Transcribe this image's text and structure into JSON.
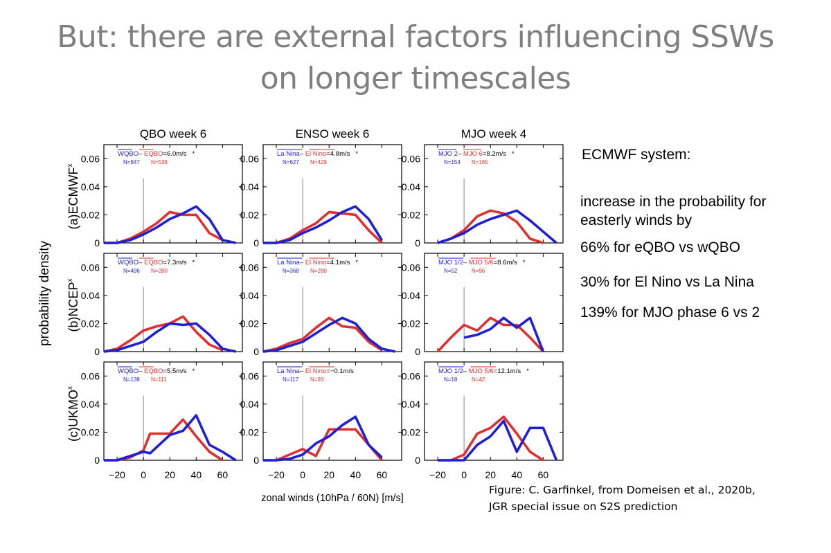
{
  "slide": {
    "title_line1": "But: there are external factors influencing SSWs",
    "title_line2": "on longer timescales",
    "side_heading": "ECMWF system:",
    "side_intro": "increase in the probability for easterly winds by",
    "side_stats": [
      "66% for eQBO vs wQBO",
      "30% for El Nino vs La Nina",
      "139%  for MJO phase 6 vs 2"
    ],
    "caption_line1": "Figure: C. Garfinkel, from Domeisen et al., 2020b,",
    "caption_line2": "JGR special issue on S2S prediction",
    "colors": {
      "title": "#7f7f7f",
      "blue": "#1f1fd6",
      "red": "#e0302e",
      "marker": "#9a9a9a"
    }
  },
  "chart_data": {
    "type": "line",
    "xlabel": "zonal winds (10hPa / 60N) [m/s]",
    "ylabel": "probability density",
    "xlim": [
      -30,
      75
    ],
    "ylim": [
      0,
      0.07
    ],
    "xticks": [
      -20,
      0,
      20,
      40,
      60
    ],
    "yticks": [
      0,
      0.02,
      0.04,
      0.06
    ],
    "ytick_labels": [
      "0",
      "0.02",
      "0.04",
      "0.06"
    ],
    "column_titles": [
      "QBO week 6",
      "ENSO week 6",
      "MJO week 4"
    ],
    "row_labels": [
      "(a)ECMWF",
      "(b)NCEP",
      "(c)UKMO"
    ],
    "row_superscript": "x",
    "zero_marker": {
      "x": 0,
      "y_top": 0.046
    },
    "panels": [
      [
        {
          "blue_label": "WQBO",
          "red_label": "EQBO",
          "diff": "=6.0m/s",
          "star": "*",
          "blue_n": "N=847",
          "red_n": "N=539",
          "x": [
            -30,
            -20,
            -10,
            0,
            10,
            20,
            30,
            40,
            50,
            60,
            70
          ],
          "blue": [
            0,
            0,
            0.002,
            0.006,
            0.011,
            0.017,
            0.021,
            0.026,
            0.017,
            0.002,
            0
          ],
          "red": [
            0,
            0,
            0.003,
            0.008,
            0.014,
            0.022,
            0.02,
            0.02,
            0.007,
            0.002,
            null
          ]
        },
        {
          "blue_label": "La Nina",
          "red_label": "El Nino",
          "diff": "=4.8m/s",
          "star": "*",
          "blue_n": "N=627",
          "red_n": "N=429",
          "x": [
            -30,
            -20,
            -10,
            0,
            10,
            20,
            30,
            40,
            50,
            60,
            70
          ],
          "blue": [
            0,
            0,
            0.002,
            0.007,
            0.011,
            0.016,
            0.022,
            0.026,
            0.017,
            0.002,
            null
          ],
          "red": [
            0,
            0,
            0.003,
            0.009,
            0.014,
            0.022,
            0.021,
            0.02,
            0.009,
            0,
            null
          ]
        },
        {
          "blue_label": "MJO 2",
          "red_label": "MJO 6",
          "diff": "=8.2m/s",
          "star": "*",
          "blue_n": "N=154",
          "red_n": "N=165",
          "x": [
            -30,
            -20,
            -10,
            0,
            10,
            20,
            30,
            40,
            50,
            60,
            70
          ],
          "blue": [
            null,
            0,
            0.003,
            0.007,
            0.013,
            0.017,
            0.02,
            0.023,
            0.016,
            0.008,
            0
          ],
          "red": [
            null,
            0,
            0.003,
            0.009,
            0.019,
            0.023,
            0.021,
            0.015,
            0.003,
            0,
            null
          ]
        }
      ],
      [
        {
          "blue_label": "WQBO",
          "red_label": "EQBO",
          "diff": "=7.3m/s",
          "star": "*",
          "blue_n": "N=496",
          "red_n": "N=280",
          "x": [
            -30,
            -20,
            -10,
            0,
            10,
            20,
            30,
            40,
            50,
            60,
            70
          ],
          "blue": [
            0,
            0.001,
            0.004,
            0.007,
            0.014,
            0.02,
            0.019,
            0.02,
            0.012,
            0.002,
            0
          ],
          "red": [
            0,
            0.002,
            0.008,
            0.015,
            0.018,
            0.02,
            0.025,
            0.014,
            0.005,
            0.001,
            null
          ]
        },
        {
          "blue_label": "La Nina",
          "red_label": "El Nino",
          "diff": "=4.1m/s",
          "star": "*",
          "blue_n": "N=368",
          "red_n": "N=280",
          "x": [
            -30,
            -20,
            -10,
            0,
            10,
            20,
            30,
            40,
            50,
            60,
            70
          ],
          "blue": [
            0,
            0.001,
            0.004,
            0.007,
            0.013,
            0.019,
            0.024,
            0.02,
            0.009,
            0.002,
            0
          ],
          "red": [
            0,
            0.002,
            0.006,
            0.009,
            0.017,
            0.024,
            0.018,
            0.017,
            0.007,
            0.001,
            null
          ]
        },
        {
          "blue_label": "MJO 1/2",
          "red_label": "MJO 5/6",
          "diff": "=8.6m/s",
          "star": "*",
          "blue_n": "N=52",
          "red_n": "N=96",
          "x": [
            -30,
            -20,
            -10,
            0,
            10,
            20,
            30,
            40,
            50,
            60,
            70
          ],
          "blue": [
            null,
            null,
            null,
            0.01,
            0.012,
            0.016,
            0.024,
            0.017,
            0.024,
            0,
            null
          ],
          "red": [
            null,
            0,
            0.01,
            0.019,
            0.015,
            0.024,
            0.019,
            0.019,
            0.01,
            0,
            null
          ]
        }
      ],
      [
        {
          "blue_label": "WQBO",
          "red_label": "EQBO",
          "diff": "=5.5m/s",
          "star": "*",
          "blue_n": "N=138",
          "red_n": "N=111",
          "x": [
            -30,
            -20,
            -10,
            0,
            5,
            20,
            30,
            40,
            50,
            60,
            70
          ],
          "blue": [
            0,
            0,
            0.003,
            0.006,
            0.005,
            0.018,
            0.021,
            0.032,
            0.011,
            0.006,
            0
          ],
          "red": [
            0,
            0,
            0.002,
            0.007,
            0.019,
            0.019,
            0.029,
            0.017,
            0.006,
            0,
            null
          ]
        },
        {
          "blue_label": "La Nina",
          "red_label": "El Nino",
          "diff": "=−0.1m/s",
          "star": "",
          "blue_n": "N=117",
          "red_n": "N=93",
          "x": [
            -30,
            -20,
            -10,
            0,
            10,
            20,
            30,
            40,
            50,
            60,
            70
          ],
          "blue": [
            0,
            0,
            0.001,
            0.004,
            0.012,
            0.017,
            0.025,
            0.031,
            0.011,
            0.002,
            null
          ],
          "red": [
            0,
            0,
            0.004,
            0.008,
            0.003,
            0.022,
            0.022,
            0.022,
            0.011,
            0,
            null
          ]
        },
        {
          "blue_label": "MJO 1/2",
          "red_label": "MJO 5/6",
          "diff": "=12.1m/s",
          "star": "*",
          "blue_n": "N=18",
          "red_n": "N=42",
          "x": [
            -30,
            -20,
            -10,
            0,
            10,
            20,
            30,
            40,
            50,
            60,
            70
          ],
          "blue": [
            null,
            0,
            0,
            0,
            0.011,
            0.017,
            0.028,
            0.006,
            0.023,
            0.023,
            0
          ],
          "red": [
            null,
            0,
            0,
            0.004,
            0.019,
            0.023,
            0.031,
            0.019,
            0.006,
            0,
            null
          ]
        }
      ]
    ]
  }
}
